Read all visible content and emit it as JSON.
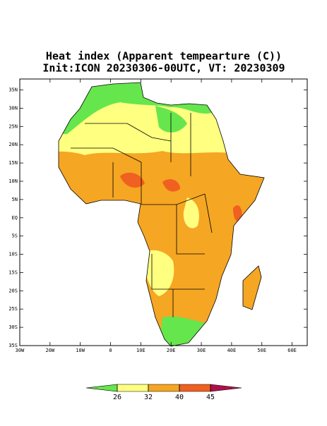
{
  "title": "Heat index (Apparent tempearture (C))",
  "subtitle": "Init:ICON 20230306-00UTC, VT: 20230309",
  "map": {
    "lonlim": [
      -30,
      65
    ],
    "latlim": [
      -35,
      38
    ],
    "lat_ticks": [
      {
        "value": 35,
        "label": "35N"
      },
      {
        "value": 30,
        "label": "30N"
      },
      {
        "value": 25,
        "label": "25N"
      },
      {
        "value": 20,
        "label": "20N"
      },
      {
        "value": 15,
        "label": "15N"
      },
      {
        "value": 10,
        "label": "10N"
      },
      {
        "value": 5,
        "label": "5N"
      },
      {
        "value": 0,
        "label": "EQ"
      },
      {
        "value": -5,
        "label": "5S"
      },
      {
        "value": -10,
        "label": "10S"
      },
      {
        "value": -15,
        "label": "15S"
      },
      {
        "value": -20,
        "label": "20S"
      },
      {
        "value": -25,
        "label": "25S"
      },
      {
        "value": -30,
        "label": "30S"
      },
      {
        "value": -35,
        "label": "35S"
      }
    ],
    "lon_ticks": [
      {
        "value": -30,
        "label": "30W"
      },
      {
        "value": -20,
        "label": "20W"
      },
      {
        "value": -10,
        "label": "10W"
      },
      0,
      {
        "value": 10,
        "label": "10E"
      },
      {
        "value": 20,
        "label": "20E"
      },
      {
        "value": 30,
        "label": "30E"
      },
      {
        "value": 40,
        "label": "40E"
      },
      {
        "value": 50,
        "label": "50E"
      },
      {
        "value": 60,
        "label": "60E"
      }
    ]
  },
  "colorbar": {
    "levels": [
      26,
      32,
      40,
      45
    ],
    "colors": [
      "#66e64d",
      "#ffff80",
      "#f5a623",
      "#f06020",
      "#b0104a"
    ]
  }
}
